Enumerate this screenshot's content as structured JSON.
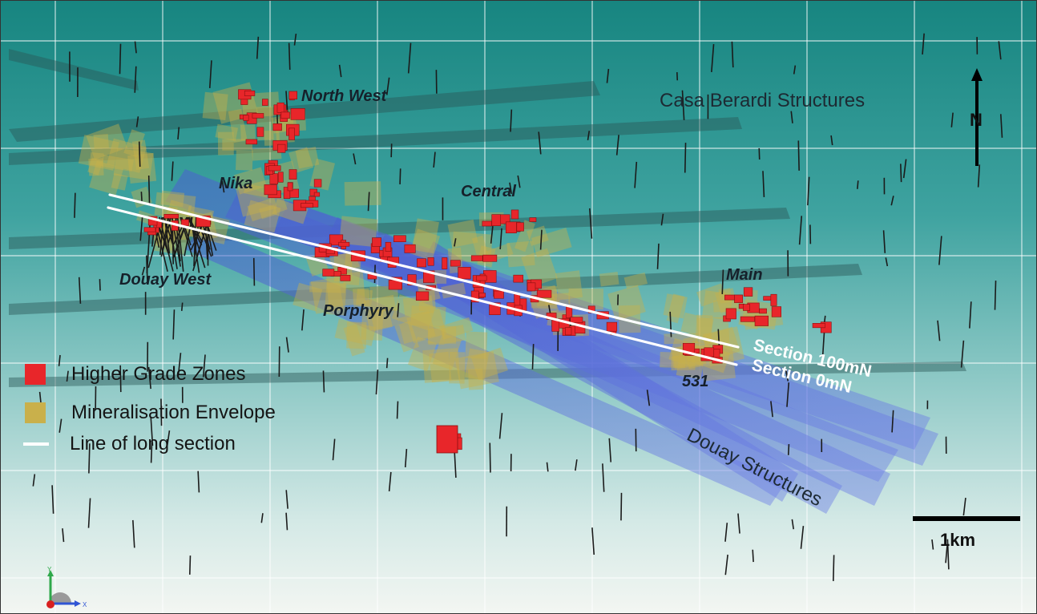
{
  "figure": {
    "zones": [
      {
        "name": "north-west",
        "label": "North West"
      },
      {
        "name": "nika",
        "label": "Nika"
      },
      {
        "name": "central",
        "label": "Central"
      },
      {
        "name": "douay-west",
        "label": "Douay West"
      },
      {
        "name": "porphyry",
        "label": "Porphyry"
      },
      {
        "name": "main",
        "label": "Main"
      },
      {
        "name": "531",
        "label": "531"
      }
    ],
    "structures": {
      "casa_berardi": "Casa Berardi Structures",
      "douay": "Douay Structures"
    },
    "sections": {
      "section_100": "Section 100mN",
      "section_0": "Section 0mN"
    },
    "legend": [
      {
        "label": "Higher Grade Zones",
        "symbol": "square",
        "color": "#e8262a"
      },
      {
        "label": "Mineralisation Envelope",
        "symbol": "square",
        "color": "#c9b04b"
      },
      {
        "label": "Line of long section",
        "symbol": "line",
        "color": "#ffffff"
      }
    ],
    "scale": {
      "label": "1km"
    },
    "north_arrow": {
      "label": "N"
    },
    "axis_triad": {
      "x": "X",
      "y": "Y"
    },
    "colors": {
      "background_top": "#1c8a86",
      "background_bottom": "#eef3f0",
      "higher_grade": "#e8262a",
      "envelope": "#c9b04b",
      "douay_structures": "#5a6fd6",
      "casa_berardi_structures": "#2f5e5e",
      "section_line": "#ffffff"
    }
  }
}
